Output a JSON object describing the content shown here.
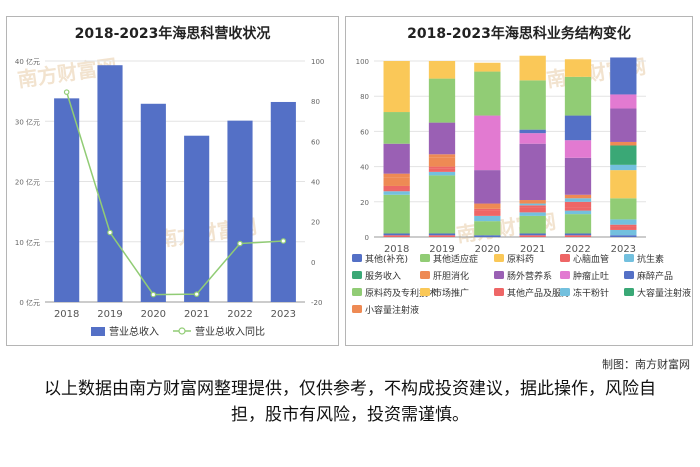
{
  "left_chart": {
    "title": "2018-2023年海思科营收状况",
    "chart_data": {
      "type": "bar",
      "categories": [
        "2018",
        "2019",
        "2020",
        "2021",
        "2022",
        "2023"
      ],
      "series": [
        {
          "name": "营业总收入",
          "type": "bar",
          "axis": "left",
          "color": "#5470c6",
          "values": [
            33.8,
            39.3,
            32.9,
            27.6,
            30.1,
            33.2
          ]
        },
        {
          "name": "营业总收入同比",
          "type": "line",
          "axis": "right",
          "color": "#91cc75",
          "values": [
            84.5,
            14.6,
            -16.3,
            -16.1,
            9.1,
            10.4
          ]
        }
      ],
      "y_left": {
        "min": 0,
        "max": 40,
        "ticks": [
          "0 亿元",
          "10 亿元",
          "20 亿元",
          "30 亿元",
          "40 亿元"
        ],
        "tick_values": [
          0,
          10,
          20,
          30,
          40
        ]
      },
      "y_right": {
        "min": -20,
        "max": 100,
        "ticks": [
          "-20",
          "0",
          "20",
          "40",
          "60",
          "80",
          "100"
        ],
        "tick_values": [
          -20,
          0,
          20,
          40,
          60,
          80,
          100
        ]
      },
      "legend_position": "bottom"
    }
  },
  "right_chart": {
    "title": "2018-2023年海思科业务结构变化",
    "chart_data": {
      "type": "bar",
      "stacked": true,
      "categories": [
        "2018",
        "2019",
        "2020",
        "2021",
        "2022",
        "2023"
      ],
      "y_ticks": [
        "0",
        "20",
        "40",
        "60",
        "80",
        "100"
      ],
      "y_tick_values": [
        0,
        20,
        40,
        60,
        80,
        100
      ],
      "ylim": [
        0,
        100
      ],
      "legend_position": "bottom",
      "series": [
        {
          "name": "小容量注射液",
          "color": "#ee8a54",
          "values": [
            0,
            0,
            0,
            0,
            0,
            0
          ]
        },
        {
          "name": "大容量注射液",
          "color": "#3aa876",
          "values": [
            0,
            0,
            0,
            0,
            0,
            0
          ]
        },
        {
          "name": "冻干粉针",
          "color": "#73c0de",
          "values": [
            0,
            0,
            0,
            0,
            0,
            0
          ]
        },
        {
          "name": "其他产品及服务",
          "color": "#ee6666",
          "values": [
            1,
            1,
            0,
            1,
            1,
            0
          ]
        },
        {
          "name": "市场推广",
          "color": "#fac858",
          "values": [
            0,
            0,
            0,
            0,
            0,
            0
          ]
        },
        {
          "name": "原料药及专利技术",
          "color": "#91cc75",
          "values": [
            0,
            0,
            0,
            0,
            0,
            0
          ]
        },
        {
          "name": "其他(补充)",
          "color": "#5470c6",
          "values": [
            1,
            1,
            1,
            1,
            1,
            1
          ]
        },
        {
          "name": "其他适应症",
          "color": "#91cc75",
          "values": [
            22,
            33,
            8,
            10,
            11,
            0
          ]
        },
        {
          "name": "冻干粉针",
          "color": "#73c0de",
          "values": [
            2,
            2,
            3,
            2,
            2,
            3
          ]
        },
        {
          "name": "其他产品及服务",
          "color": "#ee6666",
          "values": [
            1,
            2,
            3,
            3,
            2,
            2
          ]
        },
        {
          "name": "原料药",
          "color": "#fac858",
          "values": [
            0,
            0,
            0,
            0,
            0,
            0
          ]
        },
        {
          "name": "小容量注射液",
          "color": "#ee8a54",
          "values": [
            0,
            0,
            0,
            0,
            0,
            0
          ]
        },
        {
          "name": "抗生素",
          "color": "#73c0de",
          "values": [
            0,
            0,
            0,
            0,
            0,
            0
          ]
        },
        {
          "name": "其他产品及服务",
          "color": "#ee6666",
          "values": [
            2,
            1,
            1,
            1,
            3,
            1
          ]
        },
        {
          "name": "冻干粉针",
          "color": "#73c0de",
          "values": [
            0,
            0,
            0,
            1,
            2,
            3
          ]
        },
        {
          "name": "原料药及专利技术",
          "color": "#91cc75",
          "values": [
            0,
            0,
            0,
            0,
            0,
            12
          ]
        },
        {
          "name": "原料药",
          "color": "#fac858",
          "values": [
            0,
            0,
            0,
            0,
            0,
            16
          ]
        },
        {
          "name": "冻干粉针",
          "color": "#73c0de",
          "values": [
            0,
            0,
            0,
            0,
            0,
            3
          ]
        },
        {
          "name": "大容量注射液",
          "color": "#3aa876",
          "values": [
            0,
            0,
            0,
            0,
            0,
            11
          ]
        },
        {
          "name": "小容量注射液",
          "color": "#ee8a54",
          "values": [
            5,
            5,
            0,
            0,
            0,
            2
          ]
        },
        {
          "name": "肝胆消化",
          "color": "#ee8a54",
          "values": [
            2,
            2,
            3,
            2,
            2,
            0
          ]
        },
        {
          "name": "肠外营养系",
          "color": "#9a60b4",
          "values": [
            17,
            18,
            19,
            32,
            21,
            19
          ]
        },
        {
          "name": "肿瘤止吐",
          "color": "#e27ad1",
          "values": [
            0,
            0,
            31,
            6,
            10,
            8
          ]
        },
        {
          "name": "麻醉产品",
          "color": "#5470c6",
          "values": [
            0,
            0,
            0,
            2,
            14,
            21
          ]
        },
        {
          "name": "原料药及专利技术",
          "color": "#91cc75",
          "values": [
            18,
            25,
            25,
            28,
            22,
            0
          ]
        },
        {
          "name": "市场推广",
          "color": "#fac858",
          "values": [
            29,
            10,
            5,
            14,
            10,
            0
          ]
        }
      ],
      "legend": [
        {
          "name": "其他(补充)",
          "color": "#5470c6"
        },
        {
          "name": "其他适应症",
          "color": "#91cc75"
        },
        {
          "name": "原料药",
          "color": "#fac858"
        },
        {
          "name": "心脑血管",
          "color": "#ee6666"
        },
        {
          "name": "抗生素",
          "color": "#73c0de"
        },
        {
          "name": "服务收入",
          "color": "#3aa876"
        },
        {
          "name": "肝胆消化",
          "color": "#ee8a54"
        },
        {
          "name": "肠外营养系",
          "color": "#9a60b4"
        },
        {
          "name": "肿瘤止吐",
          "color": "#e27ad1"
        },
        {
          "name": "麻醉产品",
          "color": "#5470c6"
        },
        {
          "name": "原料药及专利技术",
          "color": "#91cc75"
        },
        {
          "name": "市场推广",
          "color": "#fac858"
        },
        {
          "name": "其他产品及服务",
          "color": "#ee6666"
        },
        {
          "name": "冻干粉针",
          "color": "#73c0de"
        },
        {
          "name": "大容量注射液",
          "color": "#3aa876"
        },
        {
          "name": "小容量注射液",
          "color": "#ee8a54"
        }
      ]
    }
  },
  "watermark_text": "南方财富网",
  "credit": "制图：南方财富网",
  "disclaimer": "以上数据由南方财富网整理提供，仅供参考，不构成投资建议，据此操作，风险自担，股市有风险，投资需谨慎。"
}
